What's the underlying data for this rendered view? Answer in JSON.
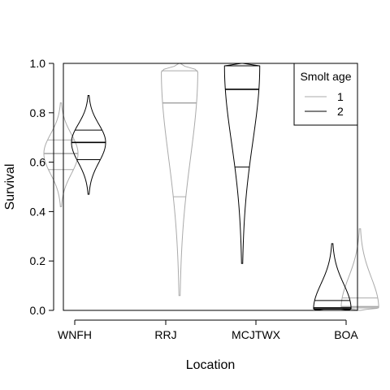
{
  "chart_data": {
    "type": "violin",
    "title": "",
    "xlabel": "Location",
    "ylabel": "Survival",
    "categories": [
      "WNFH",
      "RRJ",
      "MCJTWX",
      "BOA"
    ],
    "ylim": [
      0,
      1
    ],
    "yticks": [
      0.0,
      0.2,
      0.4,
      0.6,
      0.8,
      1.0
    ],
    "ytick_labels": [
      "0.0",
      "0.2",
      "0.4",
      "0.6",
      "0.8",
      "1.0"
    ],
    "legend": {
      "title": "Smolt age",
      "position": "top-right"
    },
    "series": [
      {
        "name": "1",
        "color": "#aaaaaa",
        "violins": [
          {
            "category": "WNFH",
            "min": 0.42,
            "max": 0.84,
            "q1": 0.57,
            "median": 0.635,
            "q3": 0.69,
            "mode": 0.635,
            "max_halfwidth": 0.03
          },
          {
            "category": "RRJ",
            "min": 0.06,
            "max": 1.0,
            "q1": 0.46,
            "median": 0.84,
            "q3": 0.97,
            "mode": 0.97,
            "max_halfwidth": 0.032
          },
          {
            "category": "BOA",
            "min": 0.0,
            "max": 0.33,
            "q1": 0.01,
            "median": 0.015,
            "q3": 0.05,
            "mode": 0.01,
            "max_halfwidth": 0.033
          }
        ]
      },
      {
        "name": "2",
        "color": "#000000",
        "violins": [
          {
            "category": "WNFH",
            "min": 0.47,
            "max": 0.87,
            "q1": 0.61,
            "median": 0.68,
            "q3": 0.73,
            "mode": 0.68,
            "max_halfwidth": 0.03
          },
          {
            "category": "MCJTWX",
            "min": 0.19,
            "max": 1.0,
            "q1": 0.58,
            "median": 0.895,
            "q3": 0.99,
            "mode": 0.99,
            "max_halfwidth": 0.031
          },
          {
            "category": "BOA",
            "min": 0.0,
            "max": 0.27,
            "q1": 0.005,
            "median": 0.01,
            "q3": 0.04,
            "mode": 0.005,
            "max_halfwidth": 0.033
          }
        ]
      }
    ]
  }
}
